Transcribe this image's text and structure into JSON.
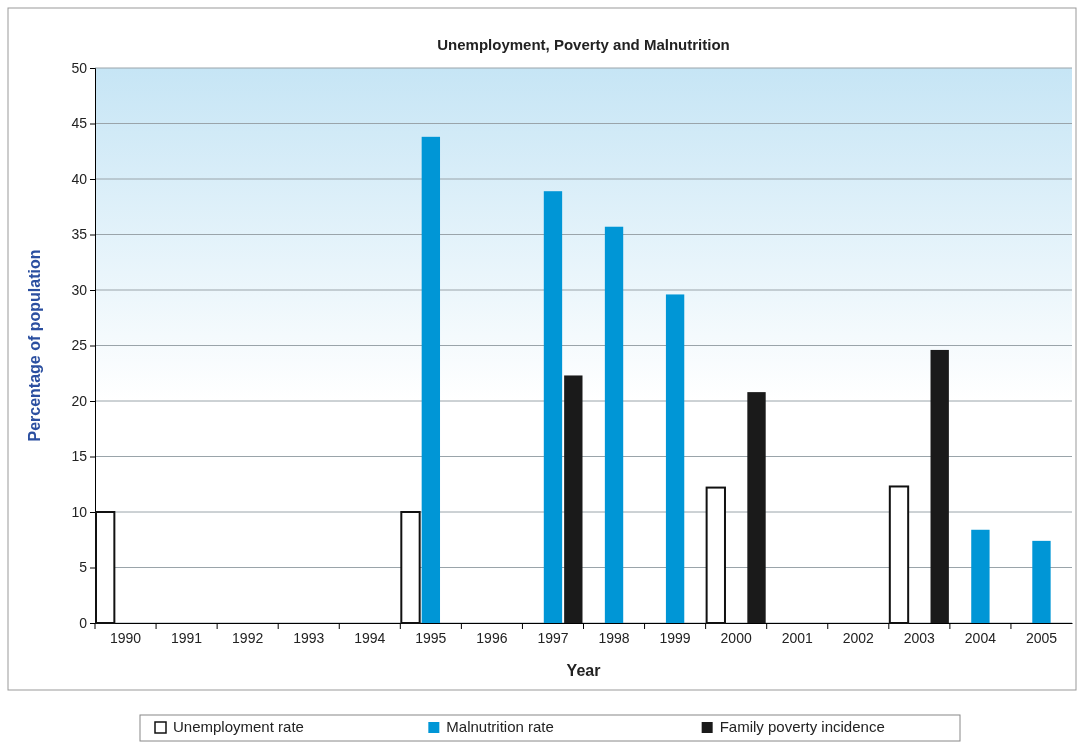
{
  "chart_data": {
    "type": "bar",
    "title": "Unemployment, Poverty and Malnutrition",
    "xlabel": "Year",
    "ylabel": "Percentage of population",
    "categories": [
      "1990",
      "1991",
      "1992",
      "1993",
      "1994",
      "1995",
      "1996",
      "1997",
      "1998",
      "1999",
      "2000",
      "2001",
      "2002",
      "2003",
      "2004",
      "2005"
    ],
    "series": [
      {
        "name": "Unemployment rate",
        "color": "#ffffff",
        "values": [
          10,
          null,
          null,
          null,
          null,
          10,
          null,
          null,
          null,
          null,
          12.2,
          null,
          null,
          12.3,
          null,
          null
        ]
      },
      {
        "name": "Malnutrition rate",
        "color": "#0096d6",
        "values": [
          null,
          null,
          null,
          null,
          null,
          43.8,
          null,
          38.9,
          35.7,
          29.6,
          null,
          null,
          null,
          null,
          8.4,
          7.4
        ]
      },
      {
        "name": "Family poverty incidence",
        "color": "#1a1a1a",
        "values": [
          null,
          null,
          null,
          null,
          null,
          null,
          null,
          22.3,
          null,
          null,
          20.8,
          null,
          null,
          24.6,
          null,
          null
        ]
      }
    ],
    "ylim": [
      0,
      50
    ],
    "yticks": [
      0,
      5,
      10,
      15,
      20,
      25,
      30,
      35,
      40,
      45,
      50
    ],
    "grid": "y",
    "legend": "bottom"
  }
}
